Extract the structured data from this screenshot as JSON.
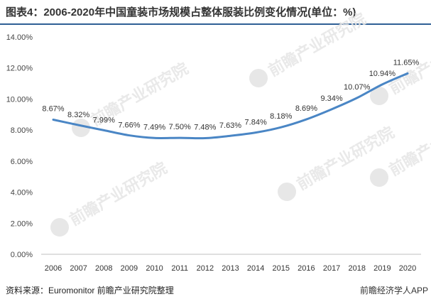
{
  "title": "图表4：2006-2020年中国童装市场规模占整体服装比例变化情况(单位：%)",
  "source": "资料来源：Euromonitor 前瞻产业研究院整理",
  "brand": "前瞻经济学人APP",
  "watermark": "前瞻产业研究院",
  "colors": {
    "line": "#4a86c5",
    "rule": "#2f5f95",
    "axis": "#bfbfbf"
  },
  "chart_data": {
    "type": "line",
    "title": "图表4：2006-2020年中国童装市场规模占整体服装比例变化情况(单位：%)",
    "xlabel": "",
    "ylabel": "",
    "ylim": [
      0,
      14
    ],
    "grid": false,
    "legend": "none",
    "yticks": [
      "0.00%",
      "2.00%",
      "4.00%",
      "6.00%",
      "8.00%",
      "10.00%",
      "12.00%",
      "14.00%"
    ],
    "categories": [
      "2006",
      "2007",
      "2008",
      "2009",
      "2010",
      "2011",
      "2012",
      "2013",
      "2014",
      "2015",
      "2016",
      "2017",
      "2018",
      "2019",
      "2020"
    ],
    "values": [
      8.67,
      8.32,
      7.99,
      7.66,
      7.49,
      7.5,
      7.48,
      7.63,
      7.84,
      8.18,
      8.69,
      9.34,
      10.07,
      10.94,
      11.65
    ],
    "labels": [
      "8.67%",
      "8.32%",
      "7.99%",
      "7.66%",
      "7.49%",
      "7.50%",
      "7.48%",
      "7.63%",
      "7.84%",
      "8.18%",
      "8.69%",
      "9.34%",
      "10.07%",
      "10.94%",
      "11.65%"
    ]
  }
}
